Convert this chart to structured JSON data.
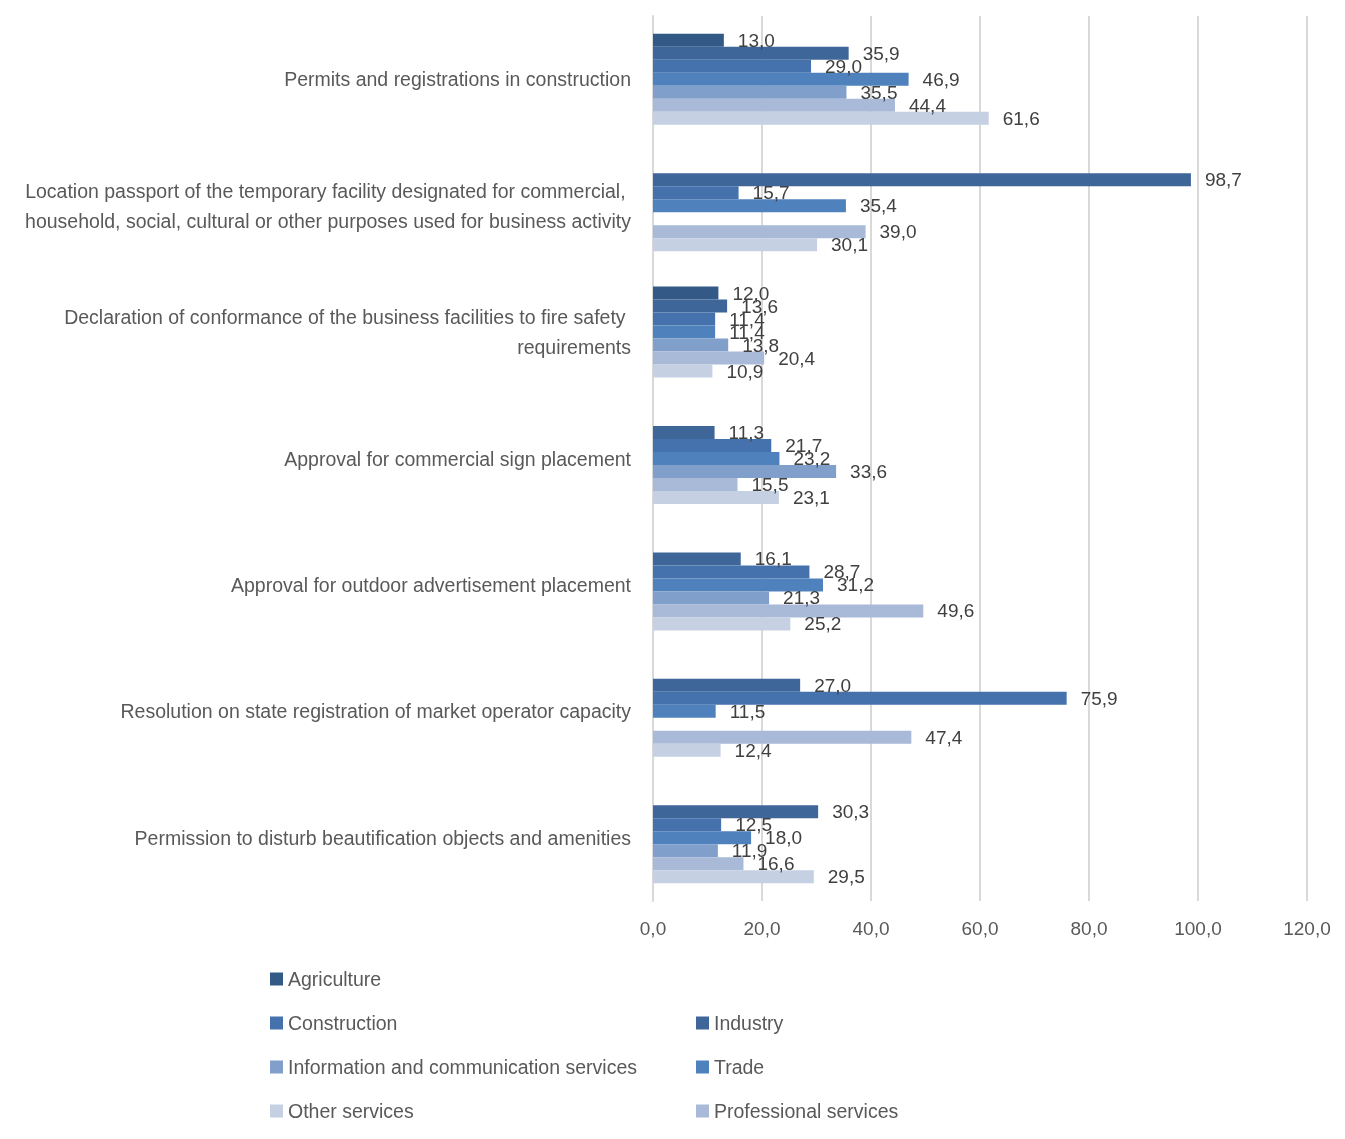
{
  "chart_data": {
    "type": "bar",
    "orientation": "horizontal",
    "categories": [
      "Permits and registrations in construction",
      "Location passport of the temporary facility designated for commercial, household, social, cultural or other purposes used for business activity",
      "Declaration of conformance of the business facilities to fire safety requirements",
      "Approval for commercial sign placement",
      "Approval for outdoor advertisement placement",
      "Resolution on state registration of market operator capacity",
      "Permission to disturb beautification objects and amenities"
    ],
    "series": [
      {
        "name": "Agriculture",
        "color": "#335a87",
        "values": [
          13.0,
          null,
          12.0,
          null,
          null,
          null,
          null
        ],
        "value_labels": [
          "13,0",
          null,
          "12,0",
          null,
          null,
          null,
          null
        ]
      },
      {
        "name": "Industry",
        "color": "#3f6699",
        "values": [
          35.9,
          98.7,
          13.6,
          11.3,
          16.1,
          27.0,
          30.3
        ],
        "value_labels": [
          "35,9",
          "98,7",
          "13,6",
          "11,3",
          "16,1",
          "27,0",
          "30,3"
        ]
      },
      {
        "name": "Construction",
        "color": "#4572ac",
        "values": [
          29.0,
          15.7,
          11.4,
          21.7,
          28.7,
          75.9,
          12.5
        ],
        "value_labels": [
          "29,0",
          "15,7",
          "11,4",
          "21,7",
          "28,7",
          "75,9",
          "12,5"
        ]
      },
      {
        "name": "Trade",
        "color": "#4f81bd",
        "values": [
          46.9,
          35.4,
          11.4,
          23.2,
          31.2,
          11.5,
          18.0
        ],
        "value_labels": [
          "46,9",
          "35,4",
          "11,4",
          "23,2",
          "31,2",
          "11,5",
          "18,0"
        ]
      },
      {
        "name": "Information and communication services",
        "color": "#819fcb",
        "values": [
          35.5,
          null,
          13.8,
          33.6,
          21.3,
          null,
          11.9
        ],
        "value_labels": [
          "35,5",
          null,
          "13,8",
          "33,6",
          "21,3",
          null,
          "11,9"
        ]
      },
      {
        "name": "Professional services",
        "color": "#a9b9d8",
        "values": [
          44.4,
          39.0,
          20.4,
          15.5,
          49.6,
          47.4,
          16.6
        ],
        "value_labels": [
          "44,4",
          "39,0",
          "20,4",
          "15,5",
          "49,6",
          "47,4",
          "16,6"
        ]
      },
      {
        "name": "Other services",
        "color": "#c5d0e3",
        "values": [
          61.6,
          30.1,
          10.9,
          23.1,
          25.2,
          12.4,
          29.5
        ],
        "value_labels": [
          "61,6",
          "30,1",
          "10,9",
          "23,1",
          "25,2",
          "12,4",
          "29,5"
        ]
      }
    ],
    "xlim": [
      0,
      120
    ],
    "xticks": [
      {
        "value": 0,
        "label": "0,0"
      },
      {
        "value": 20,
        "label": "20,0"
      },
      {
        "value": 40,
        "label": "40,0"
      },
      {
        "value": 60,
        "label": "60,0"
      },
      {
        "value": 80,
        "label": "80,0"
      },
      {
        "value": 100,
        "label": "100,0"
      },
      {
        "value": 120,
        "label": "120,0"
      }
    ],
    "grid": "x",
    "legend": "bottom"
  }
}
